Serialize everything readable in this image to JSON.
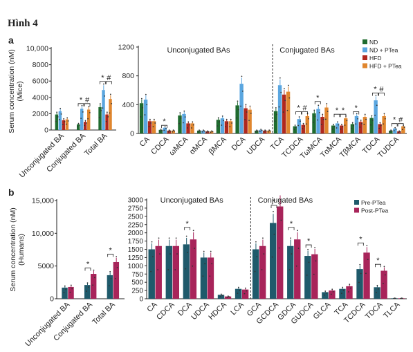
{
  "figure": {
    "title": "Hình 4"
  },
  "colors": {
    "nd": "#1f6b2f",
    "nd_ptea": "#5aa6e0",
    "hfd": "#b0281e",
    "hfd_ptea": "#e0862e",
    "pre": "#1f5a6b",
    "post": "#a8245a",
    "axis": "#222222",
    "sig": "#222222"
  },
  "chart_data": [
    {
      "panel_label": "a",
      "type": "bar",
      "ylabel": "Serum concentration (nM)\n(Mice)",
      "ylim": [
        0,
        10000
      ],
      "yticks": [
        "0",
        "2000",
        "4000",
        "6000",
        "8000",
        "10,000"
      ],
      "categories": [
        "Unconjugated BA",
        "Conjugated BA",
        "Total BA"
      ],
      "series": [
        {
          "name": "ND",
          "values": [
            1900,
            700,
            2800
          ]
        },
        {
          "name": "ND + PTea",
          "values": [
            2300,
            2600,
            4900
          ]
        },
        {
          "name": "HFD",
          "values": [
            1200,
            1000,
            1900
          ]
        },
        {
          "name": "HFD + PTea",
          "values": [
            1300,
            2500,
            3800
          ]
        }
      ],
      "annotations": [
        {
          "category": "Conjugated BA",
          "symbol": "*"
        },
        {
          "category": "Conjugated BA",
          "symbol": "#"
        },
        {
          "category": "Total BA",
          "symbol": "*"
        },
        {
          "category": "Total BA",
          "symbol": "#"
        }
      ]
    },
    {
      "panel_label": "",
      "type": "bar",
      "ylim": [
        0,
        1200
      ],
      "yticks": [
        "0",
        "400",
        "800",
        "1200"
      ],
      "group_labels": [
        "Unconjugated BAs",
        "Conjugated BAs"
      ],
      "categories": [
        "CA",
        "CDCA",
        "ωMCA",
        "αMCA",
        "βMCA",
        "DCA",
        "UDCA",
        "TCA",
        "TCDCA",
        "TωMCA",
        "TαMCA",
        "TβMCA",
        "TDCA",
        "TUDCA"
      ],
      "series": [
        {
          "name": "ND",
          "values": [
            420,
            50,
            250,
            40,
            190,
            390,
            40,
            310,
            100,
            280,
            110,
            130,
            215,
            40
          ]
        },
        {
          "name": "ND + PTea",
          "values": [
            470,
            80,
            270,
            40,
            210,
            690,
            50,
            670,
            200,
            340,
            140,
            240,
            460,
            70
          ]
        },
        {
          "name": "HFD",
          "values": [
            170,
            40,
            140,
            30,
            170,
            350,
            40,
            540,
            120,
            230,
            110,
            160,
            130,
            30
          ]
        },
        {
          "name": "HFD + PTea",
          "values": [
            170,
            40,
            140,
            30,
            170,
            330,
            40,
            580,
            240,
            360,
            210,
            230,
            240,
            100
          ]
        }
      ],
      "legend": [
        "ND",
        "ND + PTea",
        "HFD",
        "HFD + PTea"
      ],
      "annotations": [
        {
          "category": "CDCA",
          "symbol": "*"
        },
        {
          "category": "TCDCA",
          "symbol": "*"
        },
        {
          "category": "TCDCA",
          "symbol": "#"
        },
        {
          "category": "TωMCA",
          "symbol": "*"
        },
        {
          "category": "TαMCA",
          "symbol": "*"
        },
        {
          "category": "TαMCA",
          "symbol": "*"
        },
        {
          "category": "TβMCA",
          "symbol": "*"
        },
        {
          "category": "TDCA",
          "symbol": "*"
        },
        {
          "category": "TDCA",
          "symbol": "#"
        },
        {
          "category": "TUDCA",
          "symbol": "*"
        },
        {
          "category": "TUDCA",
          "symbol": "#"
        }
      ]
    },
    {
      "panel_label": "b",
      "type": "bar",
      "ylabel": "Serum concentration (nM)\n(Humans)",
      "ylim": [
        0,
        15000
      ],
      "yticks": [
        "0",
        "5000",
        "10,000",
        "15,000"
      ],
      "categories": [
        "Unconjugated BA",
        "Conjugated BA",
        "Total BA"
      ],
      "series": [
        {
          "name": "Pre-PTea",
          "values": [
            1700,
            2100,
            3600
          ]
        },
        {
          "name": "Post-PTea",
          "values": [
            1800,
            3800,
            5600
          ]
        }
      ],
      "annotations": [
        {
          "category": "Conjugated BA",
          "symbol": "*"
        },
        {
          "category": "Total BA",
          "symbol": "*"
        }
      ]
    },
    {
      "panel_label": "",
      "type": "bar",
      "ylim": [
        0,
        3000
      ],
      "yticks": [
        "0",
        "250",
        "500",
        "750",
        "1000",
        "1250",
        "1500",
        "1750",
        "2000",
        "2250",
        "2500",
        "2750",
        "3000"
      ],
      "group_labels": [
        "Unconjugated BAs",
        "Conjugated BAs"
      ],
      "categories": [
        "CA",
        "CDCA",
        "DCA",
        "UDCA",
        "HDCA",
        "LCA",
        "GCA",
        "GCDCA",
        "GDCA",
        "GUDCA",
        "GLCA",
        "TCA",
        "TCDCA",
        "TDCA",
        "TLCA"
      ],
      "series": [
        {
          "name": "Pre-PTea",
          "values": [
            1500,
            1600,
            1650,
            1250,
            120,
            300,
            1500,
            2300,
            1600,
            1300,
            200,
            300,
            900,
            350,
            15
          ]
        },
        {
          "name": "Post-PTea",
          "values": [
            1600,
            1600,
            1800,
            1250,
            70,
            280,
            1600,
            2800,
            1800,
            1350,
            250,
            380,
            1400,
            850,
            15
          ]
        }
      ],
      "legend": [
        "Pre-PTea",
        "Post-PTea"
      ],
      "annotations": [
        {
          "category": "DCA",
          "symbol": "*"
        },
        {
          "category": "GCDCA",
          "symbol": "*"
        },
        {
          "category": "GDCA",
          "symbol": "*"
        },
        {
          "category": "GUDCA",
          "symbol": "*"
        },
        {
          "category": "TCDCA",
          "symbol": "*"
        },
        {
          "category": "TDCA",
          "symbol": "*"
        }
      ]
    }
  ]
}
